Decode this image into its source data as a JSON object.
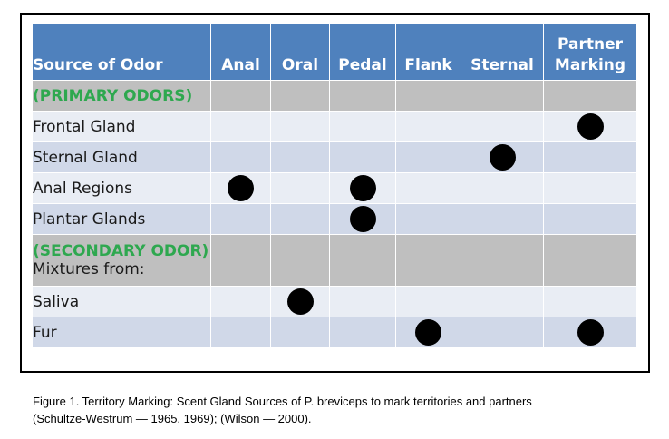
{
  "table": {
    "headers": [
      "Source of Odor",
      "Anal",
      "Oral",
      "Pedal",
      "Flank",
      "Sternal",
      "Partner Marking"
    ],
    "rows": [
      {
        "type": "section",
        "label": "(PRIMARY ODORS)",
        "sublabel": "",
        "marks": [
          false,
          false,
          false,
          false,
          false,
          false
        ]
      },
      {
        "type": "data",
        "label": "Frontal Gland",
        "marks": [
          false,
          false,
          false,
          false,
          false,
          true
        ]
      },
      {
        "type": "data",
        "label": "Sternal Gland",
        "marks": [
          false,
          false,
          false,
          false,
          true,
          false
        ]
      },
      {
        "type": "data",
        "label": "Anal Regions",
        "marks": [
          true,
          false,
          true,
          false,
          false,
          false
        ]
      },
      {
        "type": "data",
        "label": "Plantar Glands",
        "marks": [
          false,
          false,
          true,
          false,
          false,
          false
        ]
      },
      {
        "type": "section",
        "label": "(SECONDARY ODOR)",
        "sublabel": "Mixtures from:",
        "marks": [
          false,
          false,
          false,
          false,
          false,
          false
        ]
      },
      {
        "type": "data",
        "label": "Saliva",
        "marks": [
          false,
          true,
          false,
          false,
          false,
          false
        ]
      },
      {
        "type": "data",
        "label": "Fur",
        "marks": [
          false,
          false,
          false,
          true,
          false,
          true
        ]
      }
    ]
  },
  "caption": {
    "line1": "Figure 1. Territory Marking: Scent Gland Sources of P. breviceps to mark territories and partners",
    "line2": "(Schultze-Westrum — 1965, 1969); (Wilson — 2000)."
  },
  "colors": {
    "header_bg": "#4f81bd",
    "section_bg": "#bfbfbf",
    "row_light": "#e9edf4",
    "row_dark": "#d0d8e8",
    "section_text": "#2ea84f",
    "marker": "#000000"
  },
  "icons": {
    "marker": "filled-circle"
  }
}
